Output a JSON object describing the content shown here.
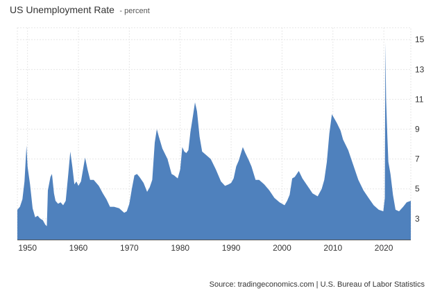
{
  "chart_data": {
    "type": "area",
    "title": "US Unemployment Rate",
    "subtitle": "- percent",
    "source": "Source: tradingeconomics.com | U.S. Bureau of Labor Statistics",
    "color": "#4f81bd",
    "grid": true,
    "ylim": [
      1.6,
      15.8
    ],
    "xlim": [
      1948.0,
      2025.3
    ],
    "y_ticks": [
      3,
      5,
      7,
      9,
      11,
      13,
      15
    ],
    "x_ticks": [
      1950,
      1960,
      1970,
      1980,
      1990,
      2000,
      2010,
      2020
    ],
    "series": [
      {
        "points": [
          [
            1948.0,
            3.6
          ],
          [
            1948.5,
            3.8
          ],
          [
            1949.0,
            4.3
          ],
          [
            1949.4,
            5.5
          ],
          [
            1949.8,
            7.9
          ],
          [
            1950.0,
            6.5
          ],
          [
            1950.5,
            5.3
          ],
          [
            1951.0,
            3.7
          ],
          [
            1951.5,
            3.1
          ],
          [
            1952.0,
            3.2
          ],
          [
            1952.5,
            3.0
          ],
          [
            1953.0,
            2.9
          ],
          [
            1953.5,
            2.6
          ],
          [
            1953.8,
            2.5
          ],
          [
            1954.0,
            4.9
          ],
          [
            1954.5,
            5.8
          ],
          [
            1954.8,
            6.0
          ],
          [
            1955.2,
            4.7
          ],
          [
            1955.5,
            4.2
          ],
          [
            1956.0,
            4.0
          ],
          [
            1956.5,
            4.1
          ],
          [
            1957.0,
            3.9
          ],
          [
            1957.5,
            4.2
          ],
          [
            1958.0,
            6.0
          ],
          [
            1958.4,
            7.5
          ],
          [
            1958.8,
            6.5
          ],
          [
            1959.2,
            5.3
          ],
          [
            1959.6,
            5.5
          ],
          [
            1960.0,
            5.2
          ],
          [
            1960.5,
            5.5
          ],
          [
            1961.0,
            6.5
          ],
          [
            1961.3,
            7.1
          ],
          [
            1961.8,
            6.3
          ],
          [
            1962.3,
            5.6
          ],
          [
            1963.0,
            5.6
          ],
          [
            1964.0,
            5.2
          ],
          [
            1964.8,
            4.7
          ],
          [
            1965.5,
            4.3
          ],
          [
            1966.2,
            3.8
          ],
          [
            1967.0,
            3.8
          ],
          [
            1968.0,
            3.7
          ],
          [
            1969.0,
            3.4
          ],
          [
            1969.5,
            3.5
          ],
          [
            1970.0,
            4.0
          ],
          [
            1970.5,
            5.0
          ],
          [
            1971.0,
            5.9
          ],
          [
            1971.5,
            6.0
          ],
          [
            1972.0,
            5.8
          ],
          [
            1972.8,
            5.4
          ],
          [
            1973.5,
            4.8
          ],
          [
            1974.0,
            5.1
          ],
          [
            1974.5,
            5.6
          ],
          [
            1975.0,
            8.1
          ],
          [
            1975.4,
            9.0
          ],
          [
            1975.8,
            8.5
          ],
          [
            1976.5,
            7.7
          ],
          [
            1977.5,
            7.0
          ],
          [
            1978.3,
            6.0
          ],
          [
            1978.8,
            5.9
          ],
          [
            1979.5,
            5.7
          ],
          [
            1980.0,
            6.3
          ],
          [
            1980.4,
            7.8
          ],
          [
            1980.8,
            7.5
          ],
          [
            1981.2,
            7.4
          ],
          [
            1981.6,
            7.6
          ],
          [
            1982.0,
            8.8
          ],
          [
            1982.5,
            9.9
          ],
          [
            1982.9,
            10.8
          ],
          [
            1983.3,
            10.2
          ],
          [
            1983.8,
            8.5
          ],
          [
            1984.3,
            7.5
          ],
          [
            1985.0,
            7.3
          ],
          [
            1986.0,
            7.0
          ],
          [
            1987.0,
            6.3
          ],
          [
            1988.0,
            5.5
          ],
          [
            1988.8,
            5.2
          ],
          [
            1989.5,
            5.3
          ],
          [
            1990.0,
            5.4
          ],
          [
            1990.5,
            5.7
          ],
          [
            1991.0,
            6.5
          ],
          [
            1991.5,
            6.9
          ],
          [
            1992.3,
            7.8
          ],
          [
            1992.8,
            7.4
          ],
          [
            1993.5,
            6.9
          ],
          [
            1994.0,
            6.5
          ],
          [
            1994.8,
            5.6
          ],
          [
            1995.5,
            5.6
          ],
          [
            1996.5,
            5.3
          ],
          [
            1997.5,
            4.9
          ],
          [
            1998.5,
            4.4
          ],
          [
            1999.5,
            4.1
          ],
          [
            2000.5,
            3.9
          ],
          [
            2001.0,
            4.2
          ],
          [
            2001.5,
            4.6
          ],
          [
            2002.0,
            5.7
          ],
          [
            2002.5,
            5.8
          ],
          [
            2003.3,
            6.2
          ],
          [
            2004.0,
            5.7
          ],
          [
            2005.0,
            5.2
          ],
          [
            2006.0,
            4.7
          ],
          [
            2007.0,
            4.5
          ],
          [
            2007.8,
            5.0
          ],
          [
            2008.3,
            5.6
          ],
          [
            2008.8,
            6.8
          ],
          [
            2009.3,
            8.7
          ],
          [
            2009.8,
            10.0
          ],
          [
            2010.3,
            9.7
          ],
          [
            2010.8,
            9.4
          ],
          [
            2011.5,
            8.9
          ],
          [
            2012.0,
            8.3
          ],
          [
            2013.0,
            7.6
          ],
          [
            2014.0,
            6.6
          ],
          [
            2015.0,
            5.6
          ],
          [
            2016.0,
            4.9
          ],
          [
            2017.0,
            4.4
          ],
          [
            2018.0,
            3.9
          ],
          [
            2019.0,
            3.6
          ],
          [
            2019.9,
            3.5
          ],
          [
            2020.2,
            4.4
          ],
          [
            2020.3,
            14.8
          ],
          [
            2020.45,
            11.0
          ],
          [
            2020.7,
            8.4
          ],
          [
            2020.9,
            6.8
          ],
          [
            2021.3,
            6.0
          ],
          [
            2021.8,
            4.6
          ],
          [
            2022.3,
            3.6
          ],
          [
            2023.0,
            3.5
          ],
          [
            2023.8,
            3.8
          ],
          [
            2024.5,
            4.1
          ],
          [
            2025.3,
            4.2
          ]
        ]
      }
    ]
  }
}
